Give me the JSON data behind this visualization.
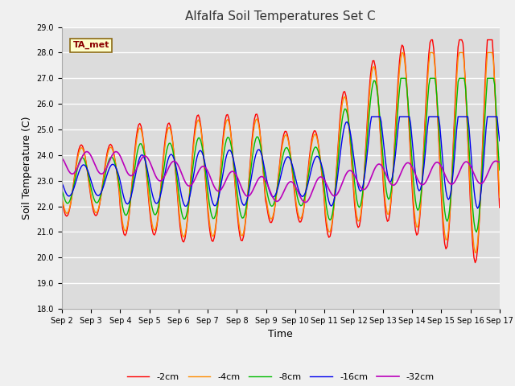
{
  "title": "Alfalfa Soil Temperatures Set C",
  "xlabel": "Time",
  "ylabel": "Soil Temperature (C)",
  "ylim": [
    18.0,
    29.0
  ],
  "yticks": [
    18.0,
    19.0,
    20.0,
    21.0,
    22.0,
    23.0,
    24.0,
    25.0,
    26.0,
    27.0,
    28.0,
    29.0
  ],
  "xtick_labels": [
    "Sep 2",
    "Sep 3",
    "Sep 4",
    "Sep 5",
    "Sep 6",
    "Sep 7",
    "Sep 8",
    "Sep 9",
    "Sep 10",
    "Sep 11",
    "Sep 12",
    "Sep 13",
    "Sep 14",
    "Sep 15",
    "Sep 16",
    "Sep 17"
  ],
  "annotation_text": "TA_met",
  "annotation_color": "#8B0000",
  "annotation_bg": "#FFFFCC",
  "colors": {
    "-2cm": "#FF0000",
    "-4cm": "#FF8C00",
    "-8cm": "#00BB00",
    "-16cm": "#0000EE",
    "-32cm": "#BB00BB"
  },
  "legend_labels": [
    "-2cm",
    "-4cm",
    "-8cm",
    "-16cm",
    "-32cm"
  ],
  "fig_bg": "#F0F0F0",
  "plot_bg": "#DCDCDC"
}
